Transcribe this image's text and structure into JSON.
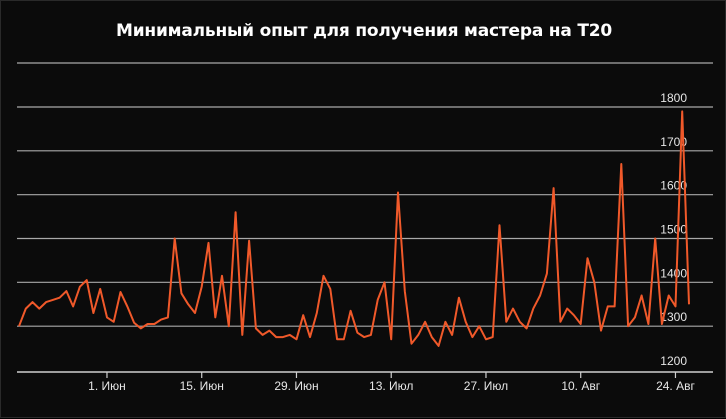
{
  "chart_data": {
    "type": "line",
    "title": "Минимальный опыт для получения мастера на T20",
    "xlabel": "",
    "ylabel": "",
    "ylim": [
      1200,
      1800
    ],
    "y_ticks": [
      1200,
      1300,
      1400,
      1500,
      1600,
      1700,
      1800
    ],
    "x_ticks": [
      {
        "label": "1. Июн",
        "index": 13
      },
      {
        "label": "15. Июн",
        "index": 27
      },
      {
        "label": "29. Июн",
        "index": 41
      },
      {
        "label": "13. Июл",
        "index": 55
      },
      {
        "label": "27. Июл",
        "index": 69
      },
      {
        "label": "10. Авг",
        "index": 83
      },
      {
        "label": "24. Авг",
        "index": 97
      }
    ],
    "grid": true,
    "legend": "none",
    "color": "#f0592a",
    "values": [
      1300,
      1340,
      1355,
      1340,
      1355,
      1360,
      1365,
      1380,
      1345,
      1390,
      1405,
      1330,
      1385,
      1320,
      1310,
      1378,
      1345,
      1308,
      1295,
      1305,
      1305,
      1315,
      1320,
      1500,
      1375,
      1350,
      1330,
      1390,
      1490,
      1320,
      1415,
      1300,
      1560,
      1280,
      1495,
      1295,
      1280,
      1290,
      1275,
      1275,
      1280,
      1270,
      1325,
      1275,
      1330,
      1415,
      1385,
      1270,
      1270,
      1335,
      1285,
      1275,
      1280,
      1360,
      1400,
      1270,
      1605,
      1380,
      1260,
      1280,
      1310,
      1275,
      1255,
      1310,
      1280,
      1365,
      1310,
      1275,
      1300,
      1270,
      1275,
      1530,
      1310,
      1340,
      1310,
      1295,
      1340,
      1370,
      1420,
      1615,
      1310,
      1340,
      1325,
      1305,
      1455,
      1400,
      1290,
      1345,
      1345,
      1670,
      1300,
      1320,
      1370,
      1305,
      1500,
      1305,
      1370,
      1345,
      1790,
      1350
    ]
  }
}
